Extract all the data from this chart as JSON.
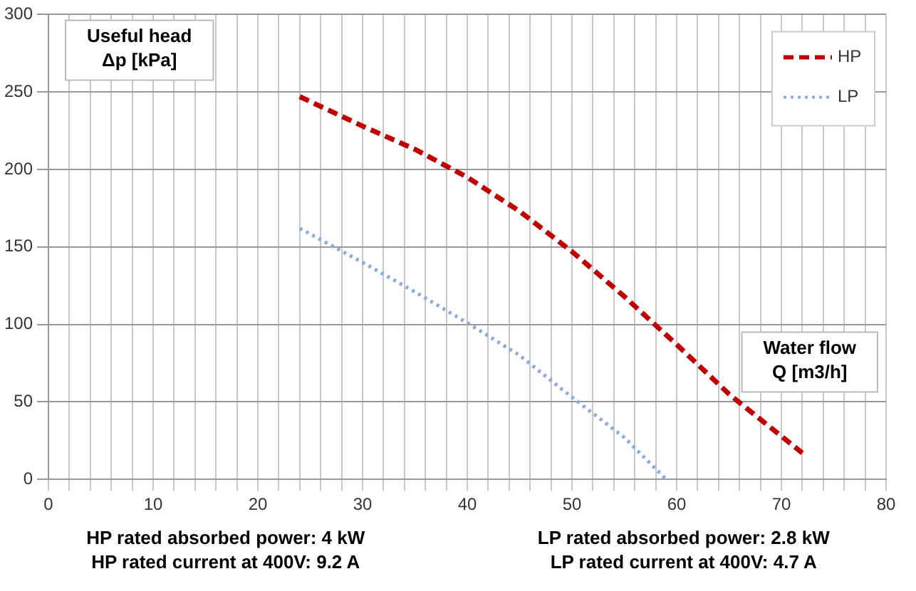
{
  "chart_data": {
    "type": "line",
    "xlabel": "Water flow\nQ [m3/h]",
    "ylabel": "Useful head\nΔp [kPa]",
    "series": [
      {
        "name": "HP",
        "color": "#c00000",
        "line_style": "dashed",
        "x": [
          24,
          30,
          35,
          40,
          45,
          50,
          55,
          60,
          65,
          72
        ],
        "values": [
          247,
          228,
          213,
          195,
          173,
          147,
          118,
          87,
          55,
          17
        ]
      },
      {
        "name": "LP",
        "color": "#8eaadb",
        "line_style": "dotted",
        "x": [
          24,
          30,
          35,
          40,
          45,
          50,
          55,
          59
        ],
        "values": [
          162,
          140,
          121,
          101,
          80,
          53,
          27,
          0
        ]
      }
    ],
    "xlim": [
      0,
      80
    ],
    "xticks": [
      0,
      {
        "value": 2,
        "label": null
      },
      {
        "value": 4,
        "label": null
      },
      {
        "value": 6,
        "label": null
      },
      {
        "value": 8,
        "label": null
      },
      10,
      {
        "value": 12,
        "label": null
      },
      {
        "value": 14,
        "label": null
      },
      {
        "value": 16,
        "label": null
      },
      {
        "value": 18,
        "label": null
      },
      20,
      {
        "value": 22,
        "label": null
      },
      {
        "value": 24,
        "label": null
      },
      {
        "value": 26,
        "label": null
      },
      {
        "value": 28,
        "label": null
      },
      30,
      {
        "value": 32,
        "label": null
      },
      {
        "value": 34,
        "label": null
      },
      {
        "value": 36,
        "label": null
      },
      {
        "value": 38,
        "label": null
      },
      40,
      {
        "value": 42,
        "label": null
      },
      {
        "value": 44,
        "label": null
      },
      {
        "value": 46,
        "label": null
      },
      {
        "value": 48,
        "label": null
      },
      50,
      {
        "value": 52,
        "label": null
      },
      {
        "value": 54,
        "label": null
      },
      {
        "value": 56,
        "label": null
      },
      {
        "value": 58,
        "label": null
      },
      60,
      {
        "value": 62,
        "label": null
      },
      {
        "value": 64,
        "label": null
      },
      {
        "value": 66,
        "label": null
      },
      {
        "value": 68,
        "label": null
      },
      70,
      {
        "value": 72,
        "label": null
      },
      {
        "value": 74,
        "label": null
      },
      {
        "value": 76,
        "label": null
      },
      {
        "value": 78,
        "label": null
      },
      80
    ],
    "ylim": [
      0,
      300
    ],
    "yticks": [
      0,
      50,
      100,
      150,
      200,
      250,
      300
    ],
    "grid": true,
    "legend": "top right",
    "marker": "none",
    "annotations": [
      "HP rated absorbed power: 4 kW\nHP rated current at 400V: 9.2 A",
      "LP rated absorbed power: 2.8 kW\nLP rated current at 400V: 4.7 A"
    ]
  }
}
